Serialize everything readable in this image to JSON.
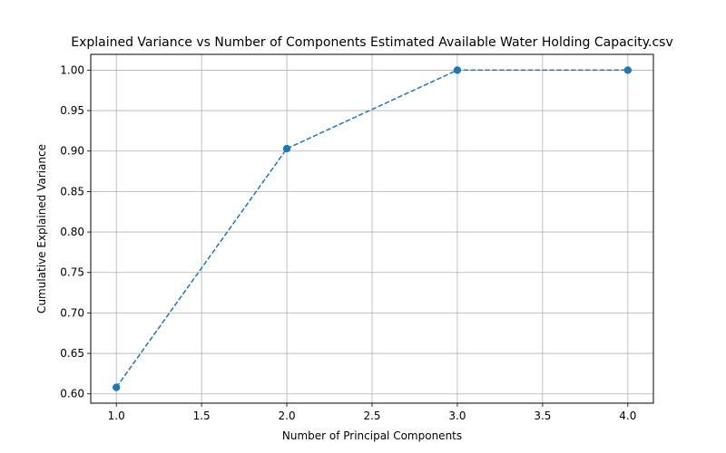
{
  "chart_data": {
    "type": "line",
    "title": "Explained Variance vs Number of Components Estimated Available Water Holding Capacity.csv",
    "xlabel": "Number of Principal Components",
    "ylabel": "Cumulative Explained Variance",
    "xlim": [
      0.85,
      4.15
    ],
    "ylim": [
      0.5885,
      1.0195
    ],
    "xticks": [
      1.0,
      1.5,
      2.0,
      2.5,
      3.0,
      3.5,
      4.0
    ],
    "yticks": [
      0.6,
      0.65,
      0.7,
      0.75,
      0.8,
      0.85,
      0.9,
      0.95,
      1.0
    ],
    "xtick_labels": [
      "1.0",
      "1.5",
      "2.0",
      "2.5",
      "3.0",
      "3.5",
      "4.0"
    ],
    "ytick_labels": [
      "0.60",
      "0.65",
      "0.70",
      "0.75",
      "0.80",
      "0.85",
      "0.90",
      "0.95",
      "1.00"
    ],
    "grid": true,
    "series": [
      {
        "x": [
          1,
          2,
          3,
          4
        ],
        "values": [
          0.608,
          0.903,
          1.0,
          1.0
        ],
        "color": "#1f77b4",
        "linestyle": "dashed",
        "marker": "circle"
      }
    ]
  }
}
